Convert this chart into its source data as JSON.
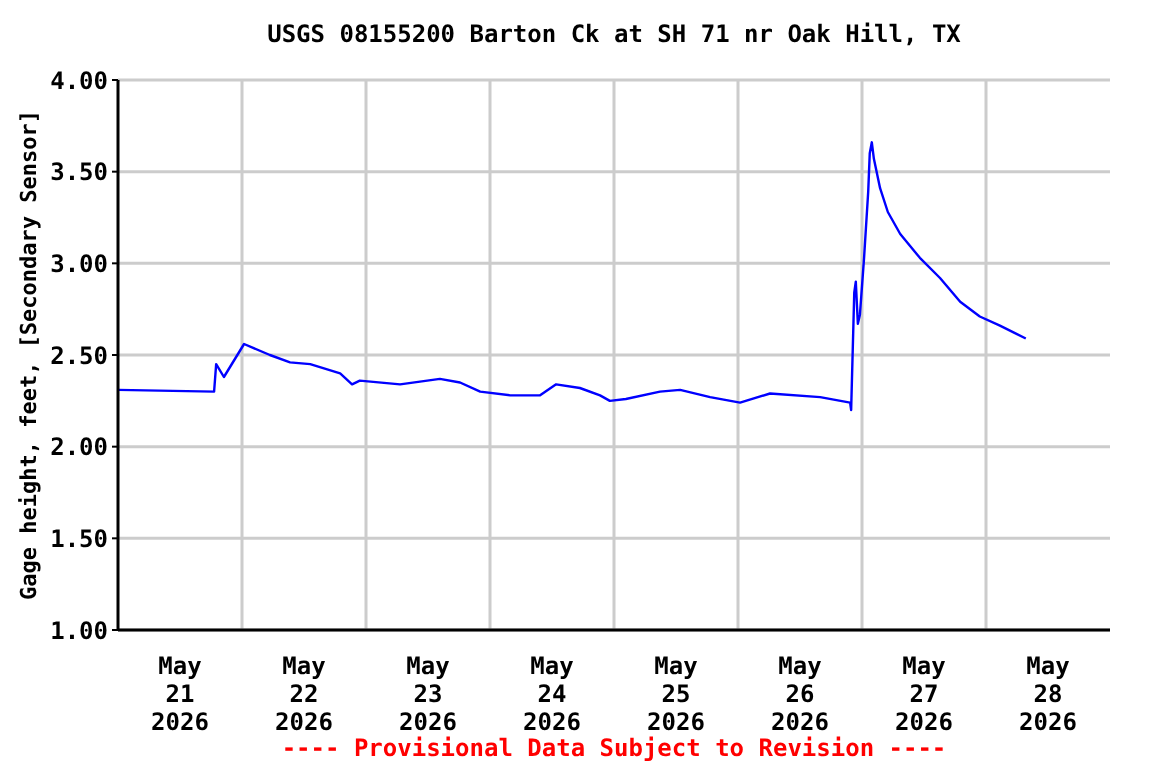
{
  "chart_data": {
    "type": "line",
    "title": "USGS 08155200 Barton Ck at SH 71 nr Oak Hill, TX",
    "ylabel": "Gage height, feet, [Secondary Sensor]",
    "annotations": [
      "---- Provisional Data Subject to Revision ----"
    ],
    "x": [
      "2026-05-21T00:00",
      "2026-05-21T18:36",
      "2026-05-21T19:00",
      "2026-05-21T20:30",
      "2026-05-22T00:24",
      "2026-05-22T05:24",
      "2026-05-22T09:18",
      "2026-05-22T13:12",
      "2026-05-22T19:00",
      "2026-05-22T21:18",
      "2026-05-22T22:48",
      "2026-05-23T06:36",
      "2026-05-23T14:18",
      "2026-05-23T18:12",
      "2026-05-23T22:06",
      "2026-05-24T03:54",
      "2026-05-24T09:42",
      "2026-05-24T12:48",
      "2026-05-24T17:24",
      "2026-05-24T21:18",
      "2026-05-24T23:12",
      "2026-05-25T02:18",
      "2026-05-25T08:54",
      "2026-05-25T12:48",
      "2026-05-25T18:36",
      "2026-05-26T00:24",
      "2026-05-26T06:12",
      "2026-05-26T15:54",
      "2026-05-26T21:42",
      "2026-05-26T21:54",
      "2026-05-26T22:30",
      "2026-05-26T22:48",
      "2026-05-26T23:12",
      "2026-05-26T23:36",
      "2026-05-27T00:24",
      "2026-05-27T01:12",
      "2026-05-27T01:30",
      "2026-05-27T01:54",
      "2026-05-27T02:18",
      "2026-05-27T03:30",
      "2026-05-27T05:00",
      "2026-05-27T07:24",
      "2026-05-27T11:12",
      "2026-05-27T15:06",
      "2026-05-27T19:00",
      "2026-05-27T22:48",
      "2026-05-28T02:42",
      "2026-05-28T07:42"
    ],
    "series": [
      {
        "color": "#0000ff",
        "values": [
          2.31,
          2.3,
          2.45,
          2.38,
          2.56,
          2.5,
          2.46,
          2.45,
          2.4,
          2.34,
          2.36,
          2.34,
          2.37,
          2.35,
          2.3,
          2.28,
          2.28,
          2.34,
          2.32,
          2.28,
          2.25,
          2.26,
          2.3,
          2.31,
          2.27,
          2.24,
          2.29,
          2.27,
          2.24,
          2.2,
          2.84,
          2.9,
          2.67,
          2.72,
          3.03,
          3.39,
          3.6,
          3.66,
          3.57,
          3.41,
          3.28,
          3.16,
          3.03,
          2.92,
          2.79,
          2.71,
          2.66,
          2.59
        ]
      }
    ],
    "xlim": [
      "2026-05-21T00:00",
      "2026-05-29T00:00"
    ],
    "xticks": [
      {
        "value": "2026-05-21T12:00",
        "label": "May\n21\n2026"
      },
      {
        "value": "2026-05-22T00:00",
        "label": null
      },
      {
        "value": "2026-05-22T12:00",
        "label": "May\n22\n2026"
      },
      {
        "value": "2026-05-23T00:00",
        "label": null
      },
      {
        "value": "2026-05-23T12:00",
        "label": "May\n23\n2026"
      },
      {
        "value": "2026-05-24T00:00",
        "label": null
      },
      {
        "value": "2026-05-24T12:00",
        "label": "May\n24\n2026"
      },
      {
        "value": "2026-05-25T00:00",
        "label": null
      },
      {
        "value": "2026-05-25T12:00",
        "label": "May\n25\n2026"
      },
      {
        "value": "2026-05-26T00:00",
        "label": null
      },
      {
        "value": "2026-05-26T12:00",
        "label": "May\n26\n2026"
      },
      {
        "value": "2026-05-27T00:00",
        "label": null
      },
      {
        "value": "2026-05-27T12:00",
        "label": "May\n27\n2026"
      },
      {
        "value": "2026-05-28T00:00",
        "label": null
      },
      {
        "value": "2026-05-28T12:00",
        "label": "May\n28\n2026"
      }
    ],
    "ylim": [
      1,
      4
    ],
    "yticks": [
      {
        "value": 1,
        "label": "1.00"
      },
      {
        "value": 1.5,
        "label": "1.50"
      },
      {
        "value": 2,
        "label": "2.00"
      },
      {
        "value": 2.5,
        "label": "2.50"
      },
      {
        "value": 3,
        "label": "3.00"
      },
      {
        "value": 3.5,
        "label": "3.50"
      },
      {
        "value": 4,
        "label": "4.00"
      }
    ],
    "grid": true,
    "marker": "none",
    "line_style": "solid"
  }
}
